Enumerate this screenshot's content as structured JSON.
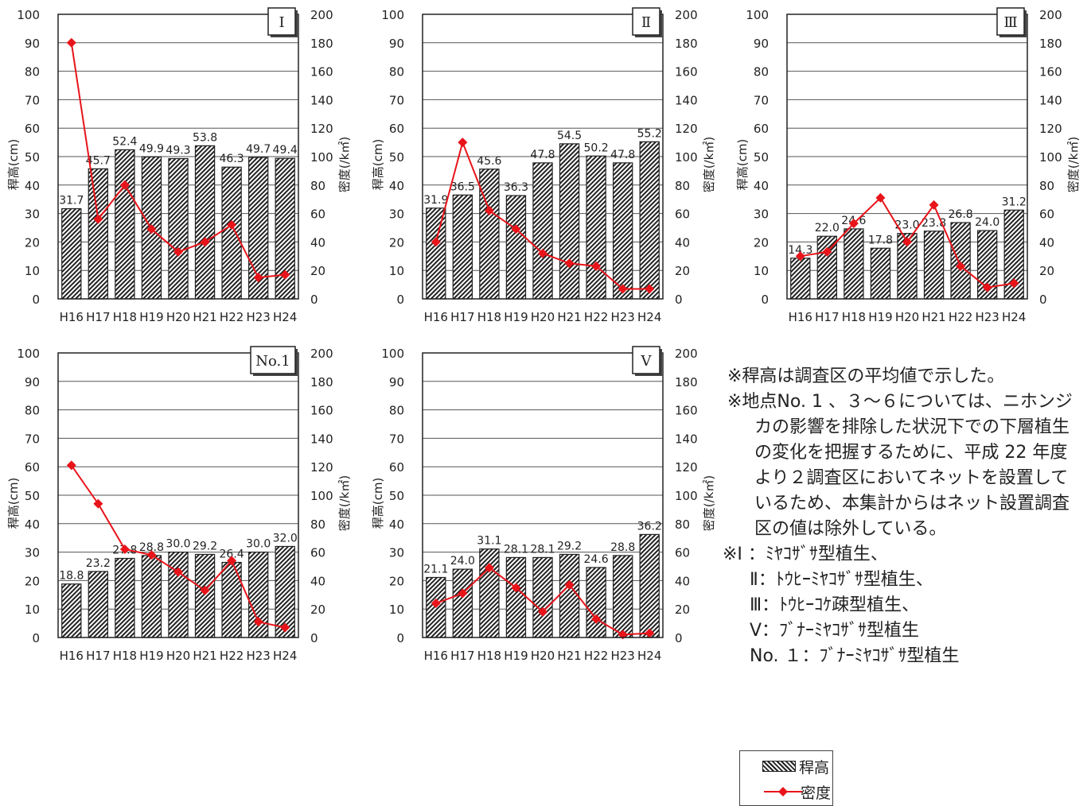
{
  "colors": {
    "bar_edge": "#222222",
    "hatch": "#222222",
    "density": "#e8141a",
    "axis": "#222222",
    "grid": "#555555"
  },
  "chart_data": [
    {
      "type": "bar",
      "title": "Ⅰ",
      "categories": [
        "H16",
        "H17",
        "H18",
        "H19",
        "H20",
        "H21",
        "H22",
        "H23",
        "H24"
      ],
      "ylabel": "稈高(cm)",
      "y2label": "密度(/k㎡)",
      "ylim": [
        0,
        100
      ],
      "y2lim": [
        0,
        200
      ],
      "yticks": [
        0,
        10,
        20,
        30,
        40,
        50,
        60,
        70,
        80,
        90,
        100
      ],
      "y2ticks": [
        0,
        20,
        40,
        60,
        80,
        100,
        120,
        140,
        160,
        180,
        200
      ],
      "series": [
        {
          "name": "稈高",
          "type": "bar",
          "values": [
            31.7,
            45.7,
            52.4,
            49.9,
            49.3,
            53.8,
            46.3,
            49.7,
            49.4
          ],
          "labels": [
            "31.7",
            "45.7",
            "52.4",
            "49.9",
            "49.3",
            "53.8",
            "46.3",
            "49.7",
            "49.4"
          ]
        },
        {
          "name": "密度",
          "type": "line",
          "axis": "right",
          "values": [
            180,
            56,
            80,
            49,
            33,
            40,
            52,
            15,
            17
          ]
        }
      ],
      "grid": true
    },
    {
      "type": "bar",
      "title": "Ⅱ",
      "categories": [
        "H16",
        "H17",
        "H18",
        "H19",
        "H20",
        "H21",
        "H22",
        "H23",
        "H24"
      ],
      "ylabel": "稈高(cm)",
      "y2label": "密度(/k㎡)",
      "ylim": [
        0,
        100
      ],
      "y2lim": [
        0,
        200
      ],
      "yticks": [
        0,
        10,
        20,
        30,
        40,
        50,
        60,
        70,
        80,
        90,
        100
      ],
      "y2ticks": [
        0,
        20,
        40,
        60,
        80,
        100,
        120,
        140,
        160,
        180,
        200
      ],
      "series": [
        {
          "name": "稈高",
          "type": "bar",
          "values": [
            31.9,
            36.5,
            45.6,
            36.3,
            47.8,
            54.5,
            50.2,
            47.8,
            55.2
          ],
          "labels": [
            "31.9",
            "36.5",
            "45.6",
            "36.3",
            "47.8",
            "54.5",
            "50.2",
            "47.8",
            "55.2"
          ]
        },
        {
          "name": "密度",
          "type": "line",
          "axis": "right",
          "values": [
            40,
            110,
            62,
            49,
            32,
            25,
            23,
            7,
            7
          ]
        }
      ],
      "grid": true
    },
    {
      "type": "bar",
      "title": "Ⅲ",
      "categories": [
        "H16",
        "H17",
        "H18",
        "H19",
        "H20",
        "H21",
        "H22",
        "H23",
        "H24"
      ],
      "ylabel": "稈高(cm)",
      "y2label": "密度(/k㎡)",
      "ylim": [
        0,
        100
      ],
      "y2lim": [
        0,
        200
      ],
      "yticks": [
        0,
        10,
        20,
        30,
        40,
        50,
        60,
        70,
        80,
        90,
        100
      ],
      "y2ticks": [
        0,
        20,
        40,
        60,
        80,
        100,
        120,
        140,
        160,
        180,
        200
      ],
      "series": [
        {
          "name": "稈高",
          "type": "bar",
          "values": [
            14.3,
            22.0,
            24.6,
            17.8,
            23.0,
            23.8,
            26.8,
            24.0,
            31.2
          ],
          "labels": [
            "14.3",
            "22.0",
            "24.6",
            "17.8",
            "23.0",
            "23.8",
            "26.8",
            "24.0",
            "31.2"
          ]
        },
        {
          "name": "密度",
          "type": "line",
          "axis": "right",
          "values": [
            30,
            33,
            53,
            71,
            40,
            66,
            23,
            8,
            11
          ]
        }
      ],
      "grid": true
    },
    {
      "type": "bar",
      "title": "No.1",
      "categories": [
        "H16",
        "H17",
        "H18",
        "H19",
        "H20",
        "H21",
        "H22",
        "H23",
        "H24"
      ],
      "ylabel": "稈高(cm)",
      "y2label": "密度(/k㎡)",
      "ylim": [
        0,
        100
      ],
      "y2lim": [
        0,
        200
      ],
      "yticks": [
        0,
        10,
        20,
        30,
        40,
        50,
        60,
        70,
        80,
        90,
        100
      ],
      "y2ticks": [
        0,
        20,
        40,
        60,
        80,
        100,
        120,
        140,
        160,
        180,
        200
      ],
      "series": [
        {
          "name": "稈高",
          "type": "bar",
          "values": [
            18.8,
            23.2,
            27.8,
            28.8,
            30.0,
            29.2,
            26.4,
            30.0,
            32.0
          ],
          "labels": [
            "18.8",
            "23.2",
            "27.8",
            "28.8",
            "30.0",
            "29.2",
            "26.4",
            "30.0",
            "32.0"
          ]
        },
        {
          "name": "密度",
          "type": "line",
          "axis": "right",
          "values": [
            121,
            94,
            62,
            58,
            46,
            33,
            54,
            11,
            7
          ]
        }
      ],
      "grid": true
    },
    {
      "type": "bar",
      "title": "Ⅴ",
      "categories": [
        "H16",
        "H17",
        "H18",
        "H19",
        "H20",
        "H21",
        "H22",
        "H23",
        "H24"
      ],
      "ylabel": "稈高(cm)",
      "y2label": "密度(/k㎡)",
      "ylim": [
        0,
        100
      ],
      "y2lim": [
        0,
        200
      ],
      "yticks": [
        0,
        10,
        20,
        30,
        40,
        50,
        60,
        70,
        80,
        90,
        100
      ],
      "y2ticks": [
        0,
        20,
        40,
        60,
        80,
        100,
        120,
        140,
        160,
        180,
        200
      ],
      "series": [
        {
          "name": "稈高",
          "type": "bar",
          "values": [
            21.1,
            24.0,
            31.1,
            28.1,
            28.1,
            29.2,
            24.6,
            28.8,
            36.2
          ],
          "labels": [
            "21.1",
            "24.0",
            "31.1",
            "28.1",
            "28.1",
            "29.2",
            "24.6",
            "28.8",
            "36.2"
          ]
        },
        {
          "name": "密度",
          "type": "line",
          "axis": "right",
          "values": [
            24,
            31,
            49,
            35,
            18,
            37,
            13,
            2,
            3
          ]
        }
      ],
      "grid": true
    }
  ],
  "notes": {
    "note1": "※稈高は調査区の平均値で示した。",
    "note2": "※地点No. 1 、３～６については、ニホンジカの影響を排除した状況下での下層植生の変化を把握するために、平成 22 年度より２調査区においてネットを設置しているため、本集計からはネット設置調査区の値は除外している。",
    "types": [
      "※Ⅰ ：ﾐﾔｺｻﾞｻ型植生、",
      "Ⅱ：ﾄｳﾋｰﾐﾔｺｻﾞｻ型植生、",
      "Ⅲ：ﾄｳﾋｰｺｹ疎型植生、",
      "Ⅴ：ﾌﾞﾅｰﾐﾔｺｻﾞｻ型植生",
      "No. １：ﾌﾞﾅｰﾐﾔｺｻﾞｻ型植生"
    ]
  },
  "legend": {
    "bar_label": "稈高",
    "line_label": "密度"
  }
}
